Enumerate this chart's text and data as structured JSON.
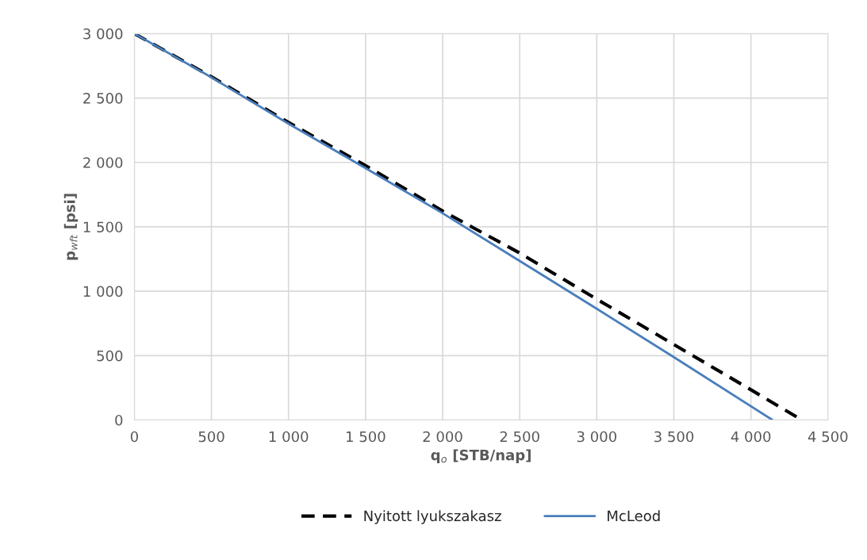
{
  "chart_data": {
    "type": "line",
    "xlabel": "q$_{o}$ [STB/nap]",
    "ylabel": "p$_{wft}$ [psi]",
    "xlim": [
      0,
      4500
    ],
    "ylim": [
      0,
      3000
    ],
    "xticks": [
      0,
      500,
      {
        "value": 1000,
        "label": "1 000"
      },
      {
        "value": 1500,
        "label": "1 500"
      },
      {
        "value": 2000,
        "label": "2 000"
      },
      {
        "value": 2500,
        "label": "2 500"
      },
      {
        "value": 3000,
        "label": "3 000"
      },
      {
        "value": 3500,
        "label": "3 500"
      },
      {
        "value": 4000,
        "label": "4 000"
      },
      {
        "value": 4500,
        "label": "4 500"
      }
    ],
    "yticks": [
      0,
      500,
      {
        "value": 1000,
        "label": "1 000"
      },
      {
        "value": 1500,
        "label": "1 500"
      },
      {
        "value": 2000,
        "label": "2 000"
      },
      {
        "value": 2500,
        "label": "2 500"
      },
      {
        "value": 3000,
        "label": "3 000"
      }
    ],
    "grid": true,
    "legend": "bottom",
    "marker": "none",
    "series": [
      {
        "name": "Nyitott lyukszakasz",
        "color": "#000000",
        "line_style": "dashed",
        "x": [
          0,
          500,
          1000,
          1500,
          2000,
          2500,
          3000,
          3500,
          4000,
          4330
        ],
        "values": [
          3000,
          2665,
          2310,
          1975,
          1623,
          1296,
          938,
          586,
          235,
          0
        ]
      },
      {
        "name": "McLeod",
        "color": "#4a7ebb",
        "line_style": "solid",
        "x": [
          0,
          500,
          1000,
          1500,
          2000,
          2500,
          3000,
          3500,
          4140
        ],
        "values": [
          3000,
          2660,
          2300,
          1955,
          1605,
          1235,
          864,
          488,
          0
        ]
      }
    ]
  }
}
